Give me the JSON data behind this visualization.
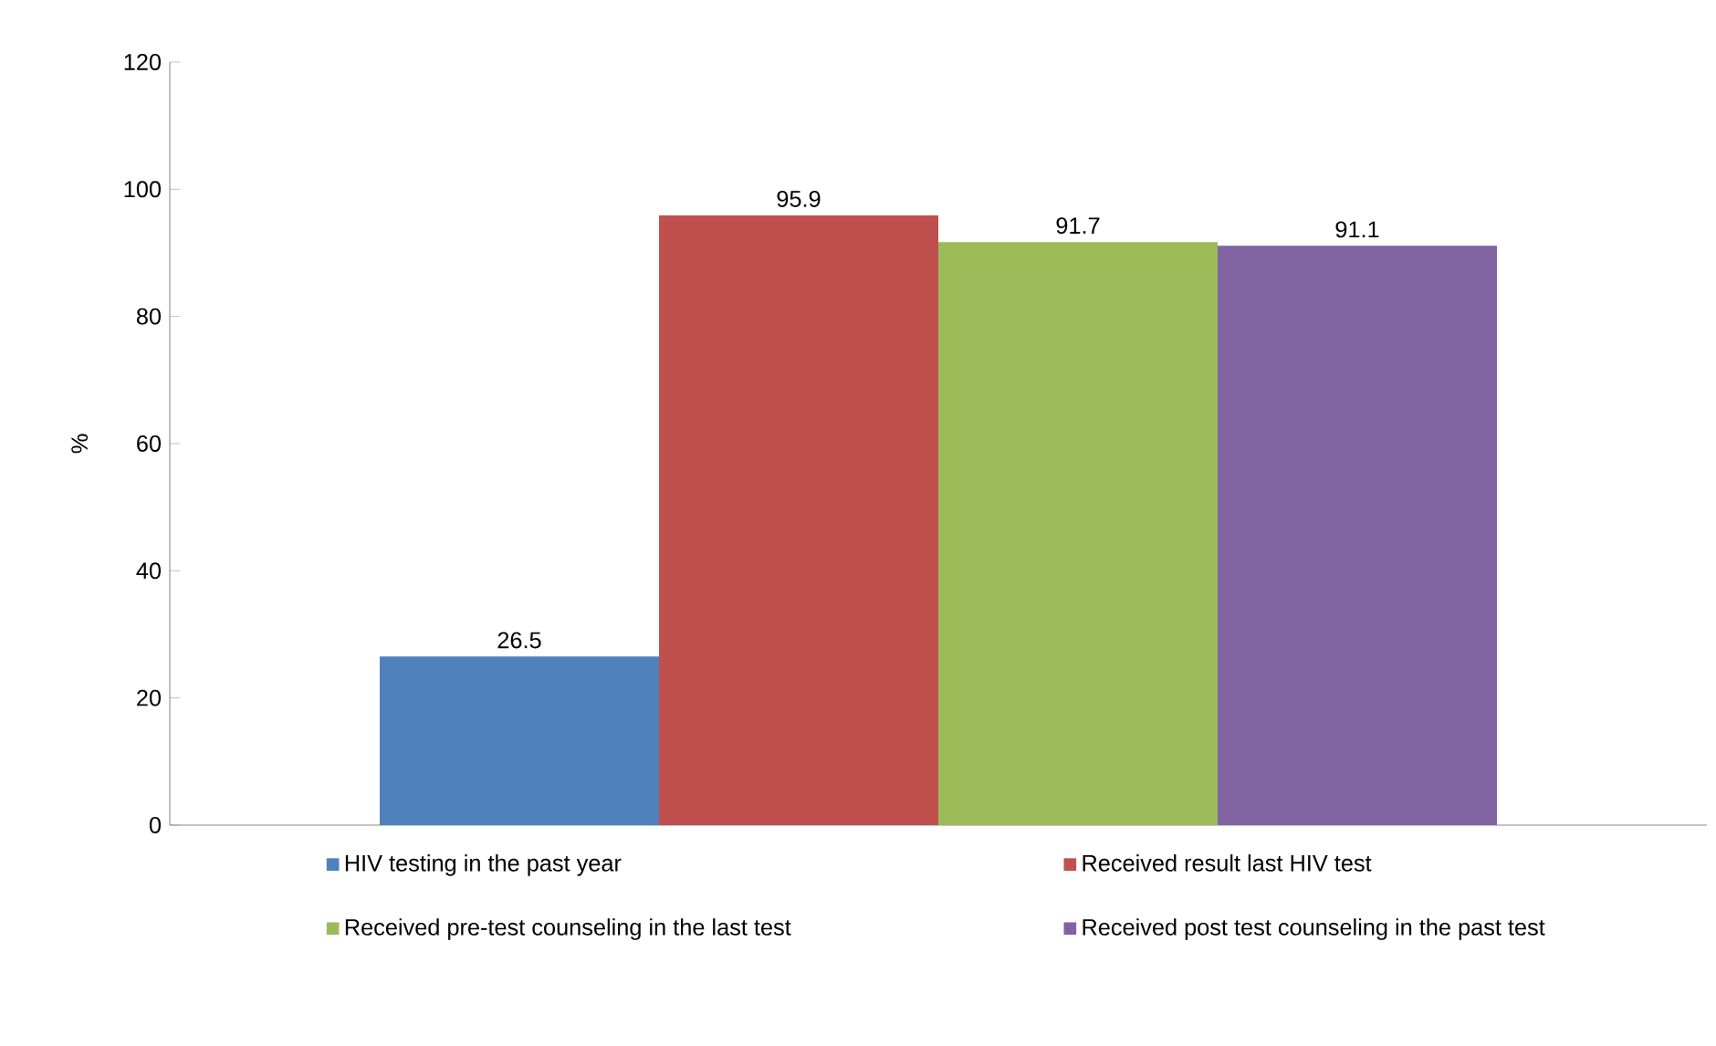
{
  "chart_data": {
    "type": "bar",
    "categories": [
      null
    ],
    "ylabel": "%",
    "ylim": [
      0,
      120
    ],
    "yticks": [
      0,
      20,
      40,
      60,
      80,
      100,
      120
    ],
    "grid": false,
    "legend": "bottom",
    "data_labels": true,
    "series": [
      {
        "name": "HIV testing in the past year",
        "color": "#4f81bd",
        "values": [
          26.5
        ]
      },
      {
        "name": "Received result last HIV test",
        "color": "#c0504d",
        "values": [
          95.9
        ]
      },
      {
        "name": "Received pre-test counseling in the last test",
        "color": "#9bbb59",
        "values": [
          91.7
        ]
      },
      {
        "name": "Received post test counseling in the past test",
        "color": "#8064a2",
        "values": [
          91.1
        ]
      }
    ]
  }
}
